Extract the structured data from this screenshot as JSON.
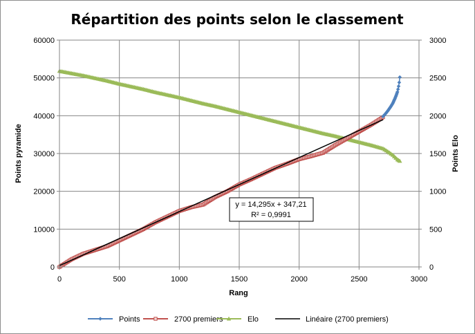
{
  "chart_data": {
    "type": "scatter",
    "title": "Répartition des points selon le classement",
    "xlabel": "Rang",
    "ylabel": "Points pyramide",
    "y2label": "Points Elo",
    "xlim": [
      0,
      3000
    ],
    "ylim": [
      0,
      60000
    ],
    "y2lim": [
      0,
      3000
    ],
    "x_ticks": [
      "0",
      "500",
      "1000",
      "1500",
      "2000",
      "2500",
      "3000"
    ],
    "y_ticks": [
      "0",
      "10000",
      "20000",
      "30000",
      "40000",
      "50000",
      "60000"
    ],
    "y2_ticks": [
      "0",
      "500",
      "1000",
      "1500",
      "2000",
      "2500",
      "3000"
    ],
    "grid": true,
    "legend_position": "bottom",
    "series": [
      {
        "name": "Points",
        "axis": "left",
        "color": "#4f81bd",
        "marker": "diamond",
        "x": [
          2700,
          2720,
          2740,
          2760,
          2780,
          2790,
          2800,
          2810,
          2820,
          2825,
          2830,
          2835,
          2840
        ],
        "y": [
          39800,
          40500,
          41300,
          42200,
          43200,
          43900,
          44600,
          45400,
          46300,
          47000,
          47800,
          48800,
          50200
        ]
      },
      {
        "name": "2700 premiers",
        "axis": "left",
        "color": "#c0504d",
        "marker": "square",
        "x": [
          0,
          100,
          200,
          300,
          400,
          500,
          600,
          700,
          800,
          900,
          1000,
          1100,
          1200,
          1300,
          1400,
          1500,
          1600,
          1700,
          1800,
          1900,
          2000,
          2100,
          2200,
          2300,
          2400,
          2500,
          2600,
          2700
        ],
        "y": [
          0,
          2000,
          3500,
          4500,
          5500,
          7000,
          8500,
          10000,
          11800,
          13300,
          14800,
          15800,
          16500,
          18500,
          20000,
          21800,
          23200,
          24700,
          26200,
          27300,
          28500,
          29300,
          30200,
          32200,
          34000,
          35800,
          37600,
          39600
        ]
      },
      {
        "name": "Elo",
        "axis": "right",
        "color": "#9bbb59",
        "marker": "triangle",
        "x": [
          0,
          100,
          200,
          300,
          400,
          500,
          600,
          700,
          800,
          900,
          1000,
          1100,
          1200,
          1300,
          1400,
          1500,
          1600,
          1700,
          1800,
          1900,
          2000,
          2100,
          2200,
          2300,
          2400,
          2500,
          2600,
          2700,
          2740,
          2780,
          2820,
          2840
        ],
        "y": [
          2590,
          2560,
          2530,
          2495,
          2460,
          2420,
          2385,
          2350,
          2310,
          2275,
          2240,
          2200,
          2160,
          2125,
          2085,
          2045,
          2005,
          1965,
          1925,
          1885,
          1845,
          1805,
          1765,
          1730,
          1690,
          1650,
          1610,
          1565,
          1525,
          1480,
          1420,
          1400
        ]
      },
      {
        "name": "Linéaire (2700 premiers)",
        "axis": "left",
        "color": "#000000",
        "marker": "none",
        "x": [
          0,
          2700
        ],
        "y": [
          347.21,
          38943.71
        ]
      }
    ],
    "annotations": {
      "equation": "y = 14,295x + 347,21",
      "r_squared": "R² = 0,9991"
    }
  }
}
